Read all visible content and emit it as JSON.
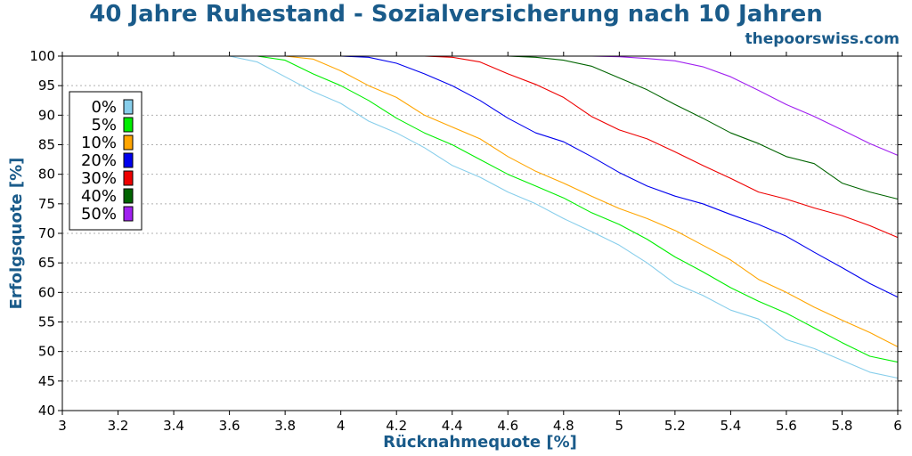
{
  "header": {
    "title": "40 Jahre Ruhestand - Sozialversicherung nach 10 Jahren",
    "brand": "thepoorswiss.com"
  },
  "chart_data": {
    "type": "line",
    "title": "40 Jahre Ruhestand - Sozialversicherung nach 10 Jahren",
    "xlabel": "Rücknahmequote [%]",
    "ylabel": "Erfolgsquote [%]",
    "xlim": [
      3,
      6
    ],
    "ylim": [
      40,
      100
    ],
    "xticks": [
      "3",
      "3.2",
      "3.4",
      "3.6",
      "3.8",
      "4",
      "4.2",
      "4.4",
      "4.6",
      "4.8",
      "5",
      "5.2",
      "5.4",
      "5.6",
      "5.8",
      "6"
    ],
    "yticks": [
      "40",
      "45",
      "50",
      "55",
      "60",
      "65",
      "70",
      "75",
      "80",
      "85",
      "90",
      "95",
      "100"
    ],
    "grid": "horizontal dotted",
    "legend_position": "left",
    "x": [
      3.0,
      3.1,
      3.2,
      3.3,
      3.4,
      3.5,
      3.6,
      3.7,
      3.8,
      3.9,
      4.0,
      4.1,
      4.2,
      4.3,
      4.4,
      4.5,
      4.6,
      4.7,
      4.8,
      4.9,
      5.0,
      5.1,
      5.2,
      5.3,
      5.4,
      5.5,
      5.6,
      5.7,
      5.8,
      5.9,
      6.0
    ],
    "series": [
      {
        "name": "0%",
        "color": "#87ceeb",
        "values": [
          100,
          100,
          100,
          100,
          100,
          100,
          100,
          99,
          96.5,
          94,
          92,
          89,
          87,
          84.5,
          81.5,
          79.5,
          77,
          75,
          72.5,
          70.3,
          68,
          65,
          61.5,
          59.5,
          57,
          55.5,
          52,
          50.5,
          48.5,
          46.5,
          45.5
        ]
      },
      {
        "name": "5%",
        "color": "#00ee00",
        "values": [
          100,
          100,
          100,
          100,
          100,
          100,
          100,
          100,
          99.3,
          97,
          95,
          92.5,
          89.5,
          87,
          85,
          82.5,
          80,
          78,
          76,
          73.5,
          71.5,
          69,
          66,
          63.5,
          60.8,
          58.5,
          56.5,
          54,
          51.5,
          49.2,
          48.2
        ]
      },
      {
        "name": "10%",
        "color": "#ffa500",
        "values": [
          100,
          100,
          100,
          100,
          100,
          100,
          100,
          100,
          100,
          99.5,
          97.5,
          95,
          93,
          90,
          88,
          86,
          83,
          80.5,
          78.5,
          76.3,
          74.2,
          72.5,
          70.5,
          68,
          65.5,
          62.2,
          60,
          57.5,
          55.3,
          53.2,
          50.8
        ]
      },
      {
        "name": "20%",
        "color": "#0000ee",
        "values": [
          100,
          100,
          100,
          100,
          100,
          100,
          100,
          100,
          100,
          100,
          100,
          99.8,
          98.8,
          97,
          95,
          92.5,
          89.5,
          87,
          85.5,
          83,
          80.3,
          78,
          76.3,
          75,
          73.2,
          71.5,
          69.5,
          66.8,
          64.2,
          61.5,
          59.2
        ]
      },
      {
        "name": "30%",
        "color": "#ee0000",
        "values": [
          100,
          100,
          100,
          100,
          100,
          100,
          100,
          100,
          100,
          100,
          100,
          100,
          100,
          100,
          99.8,
          99,
          97,
          95.2,
          93,
          89.8,
          87.5,
          86,
          83.8,
          81.5,
          79.3,
          77,
          75.8,
          74.3,
          73,
          71.3,
          69.3
        ]
      },
      {
        "name": "40%",
        "color": "#006400",
        "values": [
          100,
          100,
          100,
          100,
          100,
          100,
          100,
          100,
          100,
          100,
          100,
          100,
          100,
          100,
          100,
          100,
          100,
          99.8,
          99.3,
          98.3,
          96.3,
          94.3,
          91.8,
          89.5,
          87,
          85.2,
          83,
          81.8,
          78.5,
          77,
          75.8
        ]
      },
      {
        "name": "50%",
        "color": "#a020f0",
        "values": [
          100,
          100,
          100,
          100,
          100,
          100,
          100,
          100,
          100,
          100,
          100,
          100,
          100,
          100,
          100,
          100,
          100,
          100,
          100,
          100,
          99.9,
          99.6,
          99.2,
          98.2,
          96.5,
          94.2,
          91.8,
          89.8,
          87.5,
          85.2,
          83.2
        ]
      }
    ]
  }
}
